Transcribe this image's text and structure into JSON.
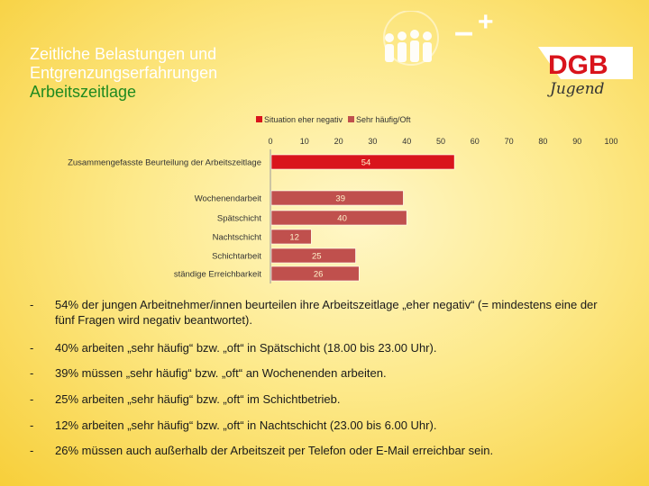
{
  "slide": {
    "title_line1": "Zeitliche Belastungen und",
    "title_line2": "Entgrenzungserfahrungen",
    "subtitle": "Arbeitszeitlage"
  },
  "logo": {
    "brand": "DGB",
    "script": "Jugend",
    "minus": "–",
    "plus": "+",
    "colors": {
      "red": "#d9141c",
      "white": "#ffffff"
    }
  },
  "chart_data": {
    "type": "bar",
    "orientation": "horizontal",
    "title": "",
    "xlim": [
      0,
      100
    ],
    "ticks": [
      "0",
      "10",
      "20",
      "30",
      "40",
      "50",
      "60",
      "70",
      "80",
      "90",
      "100"
    ],
    "legend": [
      {
        "name": "Situation eher negativ",
        "color": "#d9141c"
      },
      {
        "name": "Sehr häufig/Oft",
        "color": "#c0504d"
      }
    ],
    "categories": [
      "Zusammengefasste Beurteilung der Arbeitszeitlage",
      "Wochenendarbeit",
      "Spätschicht",
      "Nachtschicht",
      "Schichtarbeit",
      "ständige Erreichbarkeit"
    ],
    "series": [
      {
        "name": "Situation eher negativ",
        "values": [
          54,
          null,
          null,
          null,
          null,
          null
        ]
      },
      {
        "name": "Sehr häufig/Oft",
        "values": [
          null,
          39,
          40,
          12,
          25,
          26
        ]
      }
    ],
    "labels": [
      "54",
      "39",
      "40",
      "12",
      "25",
      "26"
    ]
  },
  "bullets": [
    {
      "dash": "-",
      "text": "54% der jungen Arbeitnehmer/innen beurteilen ihre Arbeitszeitlage „eher negativ“ (= mindestens eine der fünf Fragen wird negativ beantwortet)."
    },
    {
      "dash": "-",
      "text": "40% arbeiten „sehr häufig“ bzw. „oft“ in Spätschicht (18.00 bis 23.00 Uhr)."
    },
    {
      "dash": "-",
      "text": "39% müssen „sehr häufig“ bzw. „oft“ an Wochenenden arbeiten."
    },
    {
      "dash": "-",
      "text": "25% arbeiten „sehr häufig“ bzw. „oft“ im Schichtbetrieb."
    },
    {
      "dash": "-",
      "text": "12% arbeiten „sehr häufig“ bzw. „oft“ in Nachtschicht (23.00 bis 6.00 Uhr)."
    },
    {
      "dash": "-",
      "text": "26% müssen auch außerhalb der Arbeitszeit per Telefon oder E-Mail erreichbar sein."
    }
  ]
}
